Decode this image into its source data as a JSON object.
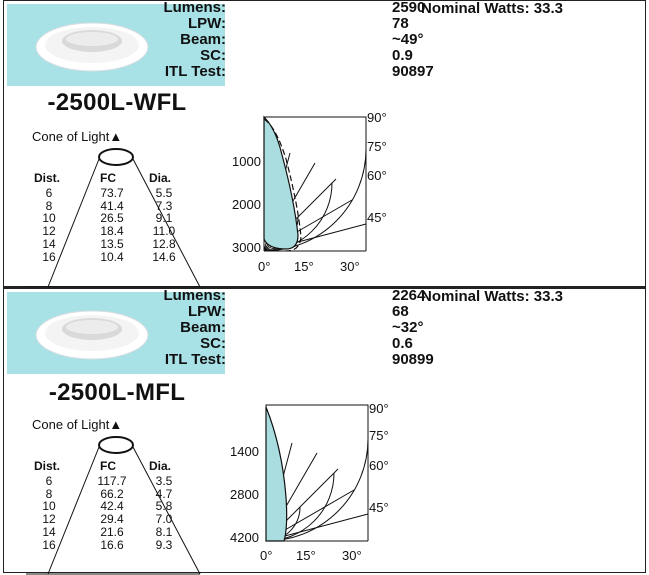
{
  "products": [
    {
      "model": "-2500L-WFL",
      "cone_label": "Cone of Light▲",
      "headers": {
        "dist": "Dist.",
        "fc": "FC",
        "dia": "Dia."
      },
      "rows": [
        {
          "dist": "6",
          "fc": "73.7",
          "dia": "5.5"
        },
        {
          "dist": "8",
          "fc": "41.4",
          "dia": "7.3"
        },
        {
          "dist": "10",
          "fc": "26.5",
          "dia": "9.1"
        },
        {
          "dist": "12",
          "fc": "18.4",
          "dia": "11.0"
        },
        {
          "dist": "14",
          "fc": "13.5",
          "dia": "12.8"
        },
        {
          "dist": "16",
          "fc": "10.4",
          "dia": "14.6"
        }
      ],
      "specs": [
        {
          "label": "Lumens:",
          "value": "2590"
        },
        {
          "label": "LPW:",
          "value": "78"
        },
        {
          "label": "Beam:",
          "value": "~49°"
        },
        {
          "label": "SC:",
          "value": "0.9"
        },
        {
          "label": "ITL Test:",
          "value": "90897"
        }
      ],
      "nominal": "Nominal Watts: 33.3",
      "polar": {
        "radial_labels": [
          "1000",
          "2000",
          "3000"
        ],
        "angle_labels": [
          "90°",
          "75°",
          "60°",
          "45°"
        ],
        "bottom_labels": [
          "0°",
          "15°",
          "30°"
        ]
      }
    },
    {
      "model": "-2500L-MFL",
      "cone_label": "Cone of Light▲",
      "headers": {
        "dist": "Dist.",
        "fc": "FC",
        "dia": "Dia."
      },
      "rows": [
        {
          "dist": "6",
          "fc": "117.7",
          "dia": "3.5"
        },
        {
          "dist": "8",
          "fc": "66.2",
          "dia": "4.7"
        },
        {
          "dist": "10",
          "fc": "42.4",
          "dia": "5.8"
        },
        {
          "dist": "12",
          "fc": "29.4",
          "dia": "7.0"
        },
        {
          "dist": "14",
          "fc": "21.6",
          "dia": "8.1"
        },
        {
          "dist": "16",
          "fc": "16.6",
          "dia": "9.3"
        }
      ],
      "specs": [
        {
          "label": "Lumens:",
          "value": "2264"
        },
        {
          "label": "LPW:",
          "value": "68"
        },
        {
          "label": "Beam:",
          "value": "~32°"
        },
        {
          "label": "SC:",
          "value": "0.6"
        },
        {
          "label": "ITL Test:",
          "value": "90899"
        }
      ],
      "nominal": "Nominal Watts: 33.3",
      "polar": {
        "radial_labels": [
          "1400",
          "2800",
          "4200"
        ],
        "angle_labels": [
          "90°",
          "75°",
          "60°",
          "45°"
        ],
        "bottom_labels": [
          "0°",
          "15°",
          "30°"
        ]
      }
    }
  ],
  "colors": {
    "thumb_bg": "#a8e1e6",
    "beam_fill": "#a9dde0"
  },
  "icons": {
    "fixture": "recessed-downlight-image",
    "cone": "cone-of-light-diagram"
  }
}
